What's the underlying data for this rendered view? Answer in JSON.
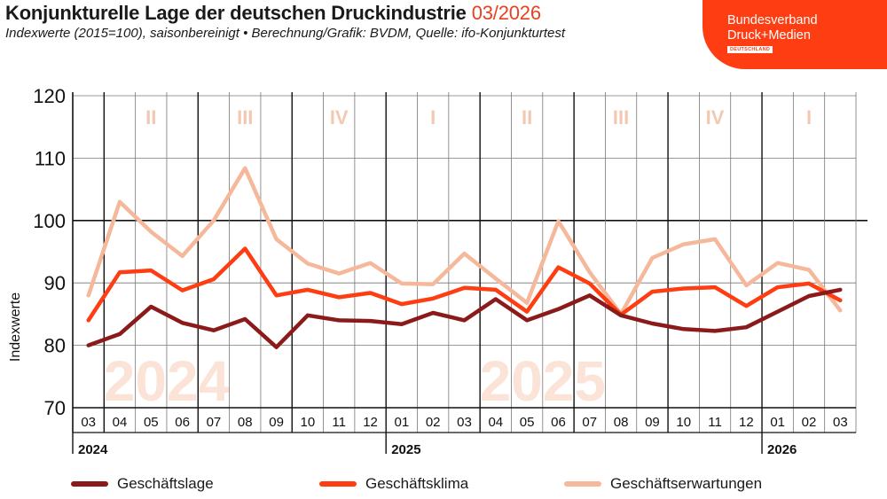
{
  "header": {
    "title": "Konjunkturelle Lage der deutschen Druckindustrie",
    "date": "03/2026",
    "subtitle": "Indexwerte (2015=100), saisonbereinigt • Berechnung/Grafik: BVDM, Quelle: ifo-Konjunkturtest"
  },
  "logo": {
    "line1": "Bundesverband",
    "line2": "Druck+Medien",
    "line3": "DEUTSCHLAND"
  },
  "colors": {
    "lage": "#8b1a1a",
    "klima": "#ff3d12",
    "erwartungen": "#f5b89b",
    "quarter_label": "#f3c8b2",
    "watermark": "#fbe3d8",
    "brand": "#ff3d12"
  },
  "chart_data": {
    "type": "line",
    "ylabel": "Indexwerte",
    "ylim": [
      70,
      120
    ],
    "yticks": [
      "70",
      "80",
      "90",
      "100",
      "110",
      "120"
    ],
    "categories": [
      "03",
      "04",
      "05",
      "06",
      "07",
      "08",
      "09",
      "10",
      "11",
      "12",
      "01",
      "02",
      "03",
      "04",
      "05",
      "06",
      "07",
      "08",
      "09",
      "10",
      "11",
      "12",
      "01",
      "02",
      "03"
    ],
    "years": [
      {
        "label": "2024",
        "start_index": 0
      },
      {
        "label": "2025",
        "start_index": 10
      },
      {
        "label": "2026",
        "start_index": 22
      }
    ],
    "quarters": [
      "II",
      "III",
      "IV",
      "I",
      "II",
      "III",
      "IV",
      "I"
    ],
    "watermarks": [
      "2024",
      "2025"
    ],
    "reference_line": 100,
    "grid": true,
    "legend_position": "bottom",
    "series": [
      {
        "name": "Geschäftslage",
        "color_key": "lage",
        "values": [
          80.0,
          81.8,
          86.2,
          83.6,
          82.4,
          84.2,
          79.7,
          84.8,
          84.0,
          83.9,
          83.4,
          85.2,
          84.0,
          87.4,
          84.0,
          85.8,
          88.0,
          84.8,
          83.5,
          82.6,
          82.3,
          82.9,
          85.4,
          87.9,
          88.9
        ]
      },
      {
        "name": "Geschäftsklima",
        "color_key": "klima",
        "values": [
          84.0,
          91.7,
          92.0,
          88.8,
          90.6,
          95.5,
          88.0,
          88.9,
          87.7,
          88.4,
          86.6,
          87.5,
          89.2,
          88.9,
          85.4,
          92.5,
          89.9,
          84.9,
          88.6,
          89.1,
          89.3,
          86.3,
          89.3,
          89.9,
          87.2
        ]
      },
      {
        "name": "Geschäftserwartungen",
        "color_key": "erwartungen",
        "values": [
          88.0,
          103.0,
          98.2,
          94.3,
          100.0,
          108.4,
          97.0,
          93.1,
          91.5,
          93.2,
          89.9,
          89.8,
          94.7,
          90.7,
          86.8,
          99.9,
          91.7,
          85.0,
          94.0,
          96.2,
          97.0,
          89.6,
          93.2,
          92.1,
          85.6
        ]
      }
    ]
  }
}
